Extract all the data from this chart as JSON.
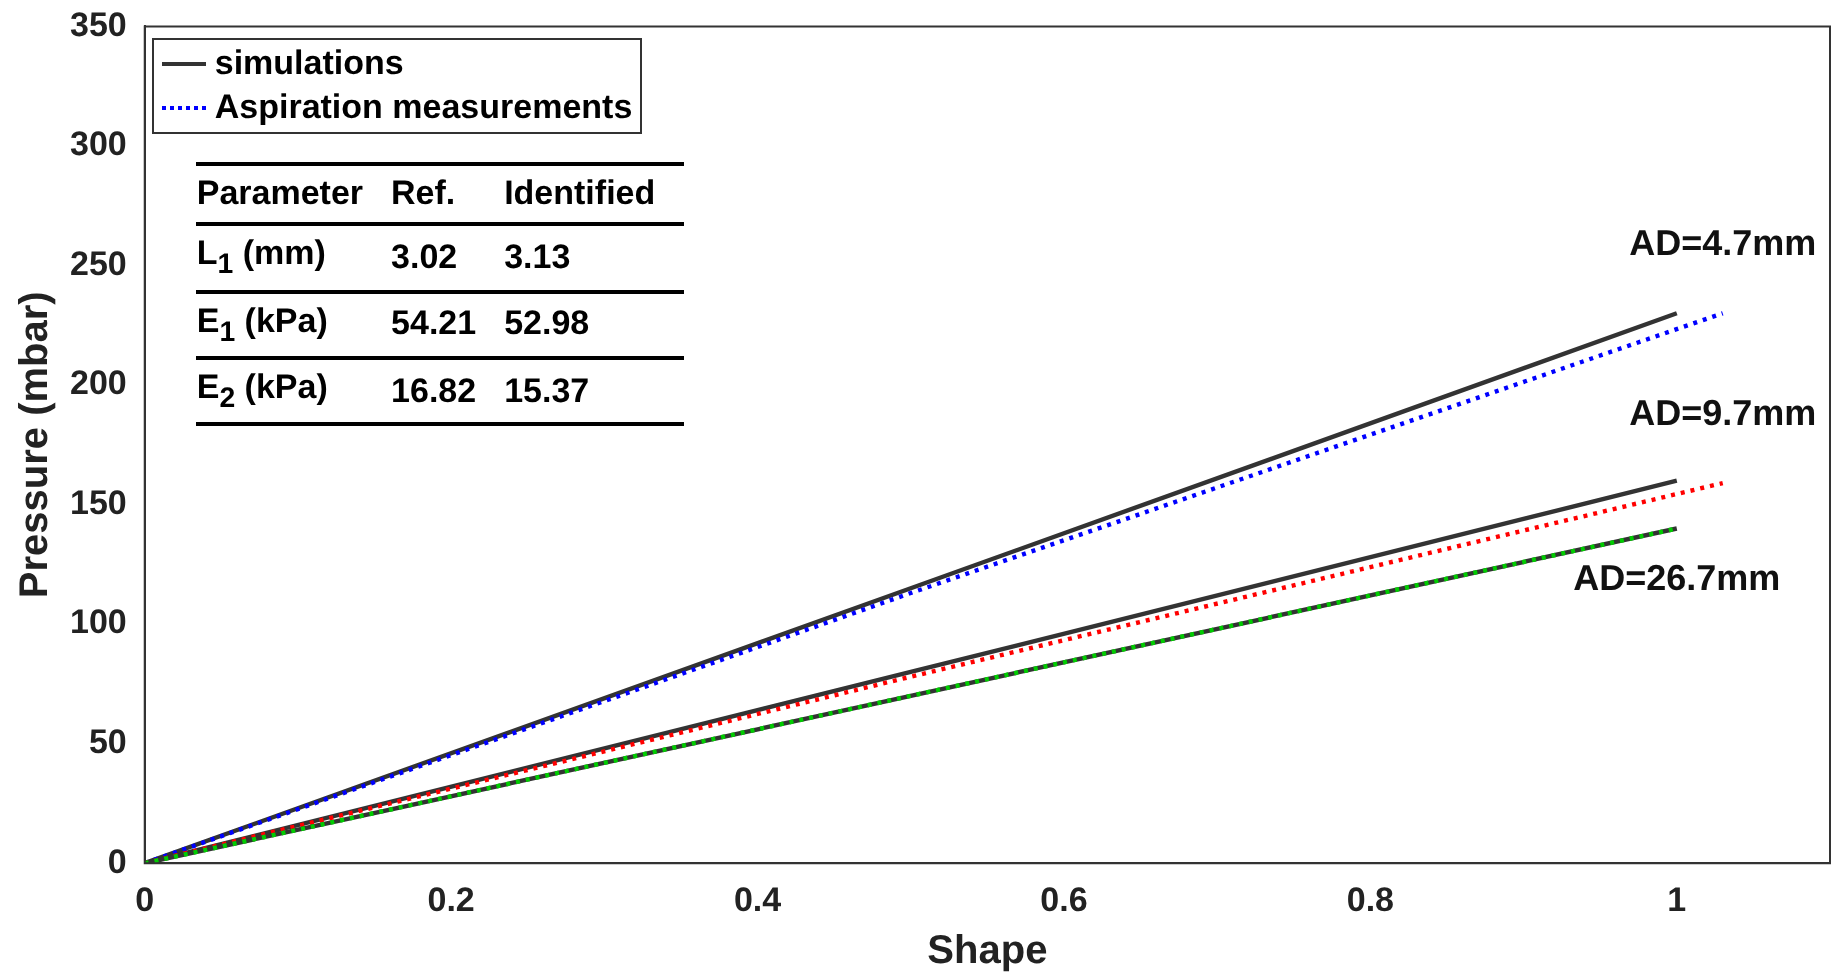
{
  "chart_data": {
    "type": "line",
    "xlabel": "Shape",
    "ylabel": "Pressure (mbar)",
    "xlim": [
      0,
      1.1
    ],
    "xticks": [
      0,
      0.2,
      0.4,
      0.6,
      0.8,
      1
    ],
    "ylim": [
      0,
      350
    ],
    "yticks": [
      0,
      50,
      100,
      150,
      200,
      250,
      300,
      350
    ],
    "grid": false,
    "legend": "top left",
    "marker": "none",
    "series": [
      {
        "name": "simulations",
        "color": "#333333",
        "line_style": "solid",
        "x": [
          0,
          0.5,
          1
        ],
        "values": [
          0,
          115,
          230
        ]
      },
      {
        "name": "Aspiration measurements",
        "color": "#0000ff",
        "line_style": "dotted",
        "x": [
          0,
          0.5,
          1.03
        ],
        "values": [
          0,
          113,
          230
        ]
      },
      {
        "color": "#333333",
        "line_style": "solid",
        "x": [
          0,
          0.5,
          1
        ],
        "values": [
          0,
          80,
          160
        ]
      },
      {
        "color": "#ff0000",
        "line_style": "dotted",
        "x": [
          0,
          0.5,
          1.03
        ],
        "values": [
          0,
          78,
          159
        ]
      },
      {
        "color": "#333333",
        "line_style": "solid",
        "x": [
          0,
          0.5,
          1
        ],
        "values": [
          0,
          70,
          140
        ]
      },
      {
        "color": "#00cc00",
        "line_style": "dotted",
        "x": [
          0,
          0.5,
          1
        ],
        "values": [
          0,
          70,
          140
        ]
      }
    ],
    "annotations": [
      "AD=4.7mm",
      "AD=9.7mm",
      "AD=26.7mm",
      "Parameter",
      "Ref.",
      "Identified",
      "L$_{1}$ (mm)",
      "3.02",
      "3.13",
      "E$_{1}$ (kPa)",
      "54.21",
      "52.98",
      "E$_{2}$ (kPa)",
      "16.82",
      "15.37"
    ]
  }
}
